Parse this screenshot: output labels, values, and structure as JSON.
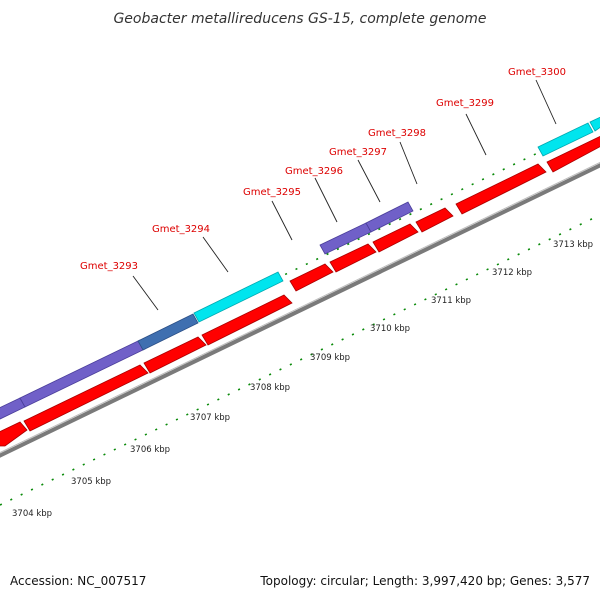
{
  "title": "Geobacter metallireducens GS-15, complete genome",
  "accession": "Accession: NC_007517",
  "topology": "Topology: circular; Length: 3,997,420 bp; Genes: 3,577",
  "colors": {
    "forward_feature": "#ff0000",
    "cds_cyan": "#00e5ee",
    "cds_purple": "#7060c8",
    "backbone": "#7a7a7a",
    "tick": "#0a8a0a",
    "label": "#dd0000"
  },
  "scale_labels": [
    "3704 kbp",
    "3705 kbp",
    "3706 kbp",
    "3707 kbp",
    "3708 kbp",
    "3709 kbp",
    "3710 kbp",
    "3711 kbp",
    "3712 kbp",
    "3713 kbp"
  ],
  "gene_labels": [
    "Gmet_3293",
    "Gmet_3294",
    "Gmet_3295",
    "Gmet_3296",
    "Gmet_3297",
    "Gmet_3298",
    "Gmet_3299",
    "Gmet_3300"
  ]
}
